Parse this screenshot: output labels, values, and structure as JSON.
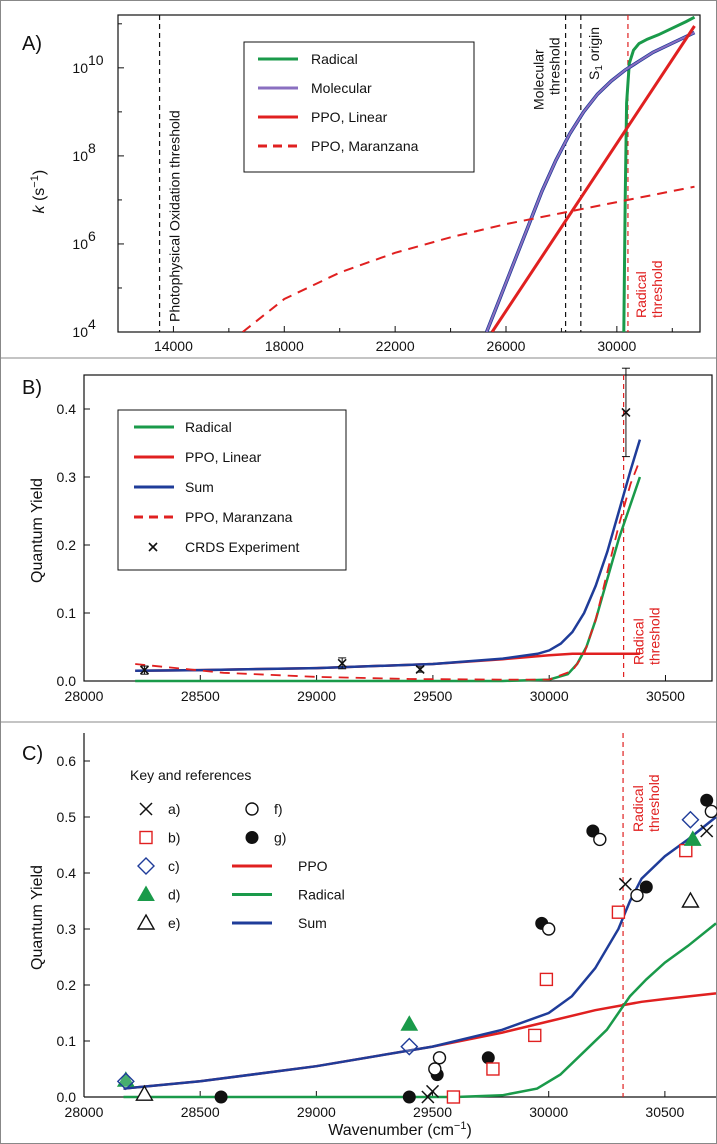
{
  "colors": {
    "radical": "#1a9a4a",
    "molecular": "#8a6fc0",
    "ppo": "#e02020",
    "sum": "#1f3c99",
    "black": "#111111",
    "red_annot": "#e02020"
  },
  "chart_data": [
    {
      "panel": "A)",
      "type": "line",
      "xlim": [
        12000,
        33000
      ],
      "ylog": true,
      "ylim_log10": [
        4,
        11.2
      ],
      "x_ticks": [
        "14000",
        "18000",
        "22000",
        "26000",
        "30000"
      ],
      "x_tick_values": [
        14000,
        18000,
        22000,
        26000,
        30000
      ],
      "y_tick_labels": [
        "10",
        "10",
        "10",
        "10"
      ],
      "y_tick_exponents": [
        "4",
        "6",
        "8",
        "10"
      ],
      "y_tick_values": [
        4,
        6,
        8,
        10
      ],
      "ylabel_main": "k",
      "ylabel_units": "(s",
      "ylabel_exp": "−1",
      "ylabel_close": ")",
      "vlines": [
        {
          "x": 13500,
          "label": "Photophysical Oxidation threshold",
          "style": "dashed",
          "color": "black"
        },
        {
          "x": 28150,
          "label_line1": "Molecular",
          "label_line2": "threshold",
          "style": "dashed",
          "color": "black"
        },
        {
          "x": 28700,
          "label_main": "S",
          "label_sub": "1",
          "label_rest": " origin",
          "style": "dashed",
          "color": "black"
        },
        {
          "x": 30400,
          "label_line1": "Radical",
          "label_line2": "threshold",
          "style": "dashed",
          "color": "red"
        }
      ],
      "legend": [
        {
          "name": "Radical",
          "style": "solid",
          "color_key": "radical"
        },
        {
          "name": "Molecular",
          "style": "solid",
          "color_key": "molecular"
        },
        {
          "name": "PPO, Linear",
          "style": "solid",
          "color_key": "ppo"
        },
        {
          "name": "PPO, Maranzana",
          "style": "dashed",
          "color_key": "ppo"
        }
      ],
      "series": [
        {
          "name": "Radical",
          "x": [
            30250,
            30300,
            30350,
            30450,
            30600,
            30800,
            31100,
            31500,
            32000,
            32500,
            32800
          ],
          "log10y": [
            4,
            7.0,
            9.2,
            10.1,
            10.4,
            10.55,
            10.65,
            10.75,
            10.9,
            11.05,
            11.15
          ]
        },
        {
          "name": "Molecular",
          "x": [
            25300,
            25800,
            26300,
            26800,
            27300,
            27800,
            28300,
            28800,
            29300,
            29800,
            30300,
            30800,
            31300,
            31800,
            32300,
            32800
          ],
          "log10y": [
            4.0,
            4.8,
            5.6,
            6.4,
            7.2,
            7.9,
            8.5,
            9.0,
            9.4,
            9.7,
            9.95,
            10.15,
            10.35,
            10.5,
            10.65,
            10.8
          ]
        },
        {
          "name": "PPO, Linear",
          "x": [
            25500,
            32800
          ],
          "log10y": [
            4.0,
            10.95
          ]
        },
        {
          "name": "PPO, Maranzana",
          "x": [
            16500,
            18000,
            20000,
            22000,
            24000,
            26000,
            28000,
            30000,
            32000,
            32800
          ],
          "log10y": [
            4.0,
            4.75,
            5.35,
            5.8,
            6.15,
            6.45,
            6.7,
            6.95,
            7.2,
            7.3
          ]
        }
      ]
    },
    {
      "panel": "B)",
      "type": "line",
      "xlim": [
        28000,
        30700
      ],
      "ylim": [
        0,
        0.45
      ],
      "x_ticks": [
        "28000",
        "28500",
        "29000",
        "29500",
        "30000",
        "30500"
      ],
      "x_tick_values": [
        28000,
        28500,
        29000,
        29500,
        30000,
        30500
      ],
      "y_ticks": [
        "0.0",
        "0.1",
        "0.2",
        "0.3",
        "0.4"
      ],
      "y_tick_values": [
        0,
        0.1,
        0.2,
        0.3,
        0.4
      ],
      "ylabel": "Quantum Yield",
      "vline": {
        "x": 30320,
        "label_line1": "Radical",
        "label_line2": "threshold"
      },
      "legend": [
        {
          "name": "Radical",
          "style": "solid",
          "color_key": "radical"
        },
        {
          "name": "PPO, Linear",
          "style": "solid",
          "color_key": "ppo"
        },
        {
          "name": "Sum",
          "style": "solid",
          "color_key": "sum"
        },
        {
          "name": "PPO, Maranzana",
          "style": "dashed",
          "color_key": "ppo"
        },
        {
          "name": "CRDS Experiment",
          "style": "x-marker",
          "color_key": "black"
        }
      ],
      "series": [
        {
          "name": "Radical",
          "x": [
            28220,
            29800,
            30000,
            30080,
            30120,
            30160,
            30200,
            30250,
            30300,
            30350,
            30390
          ],
          "y": [
            0,
            0,
            0.002,
            0.01,
            0.025,
            0.05,
            0.09,
            0.15,
            0.21,
            0.26,
            0.3
          ]
        },
        {
          "name": "PPO, Linear",
          "x": [
            28220,
            28500,
            29000,
            29500,
            29800,
            30000,
            30100,
            30200,
            30390
          ],
          "y": [
            0.015,
            0.016,
            0.019,
            0.025,
            0.032,
            0.038,
            0.04,
            0.04,
            0.04
          ]
        },
        {
          "name": "Sum",
          "x": [
            28220,
            28500,
            29000,
            29500,
            29800,
            29950,
            30000,
            30050,
            30100,
            30150,
            30200,
            30250,
            30300,
            30350,
            30390
          ],
          "y": [
            0.015,
            0.016,
            0.019,
            0.025,
            0.033,
            0.04,
            0.045,
            0.055,
            0.072,
            0.1,
            0.14,
            0.19,
            0.25,
            0.31,
            0.355
          ]
        },
        {
          "name": "PPO, Maranzana",
          "x": [
            28220,
            28600,
            29000,
            29400,
            29800,
            30000,
            30100,
            30150,
            30200,
            30250,
            30300,
            30350,
            30390
          ],
          "y": [
            0.025,
            0.012,
            0.006,
            0.003,
            0.002,
            0.002,
            0.015,
            0.04,
            0.09,
            0.16,
            0.23,
            0.29,
            0.325
          ]
        },
        {
          "name": "CRDS Experiment",
          "x": [
            28260,
            29110,
            29445,
            30330
          ],
          "y": [
            0.016,
            0.026,
            0.017,
            0.395
          ],
          "yerr": [
            0.006,
            0.008,
            0.004,
            0.065
          ]
        }
      ]
    },
    {
      "panel": "C)",
      "type": "scatter",
      "xlim": [
        28000,
        30720
      ],
      "ylim": [
        0,
        0.65
      ],
      "x_ticks": [
        "28000",
        "28500",
        "29000",
        "29500",
        "30000",
        "30500"
      ],
      "x_tick_values": [
        28000,
        28500,
        29000,
        29500,
        30000,
        30500
      ],
      "y_ticks": [
        "0.0",
        "0.1",
        "0.2",
        "0.3",
        "0.4",
        "0.5",
        "0.6"
      ],
      "y_tick_values": [
        0,
        0.1,
        0.2,
        0.3,
        0.4,
        0.5,
        0.6
      ],
      "ylabel": "Quantum Yield",
      "xlabel": "Wavenumber (cm",
      "xlabel_exp": "−1",
      "xlabel_close": ")",
      "vline": {
        "x": 30320,
        "label_line1": "Radical",
        "label_line2": "threshold"
      },
      "legend_title": "Key and references",
      "legend_markers": [
        {
          "marker": "x",
          "label": "a)"
        },
        {
          "marker": "square",
          "label": "b)"
        },
        {
          "marker": "diamond",
          "label": "c)"
        },
        {
          "marker": "filled-triangle",
          "label": "d)"
        },
        {
          "marker": "open-triangle",
          "label": "e)"
        },
        {
          "marker": "open-circle",
          "label": "f)"
        },
        {
          "marker": "filled-circle",
          "label": "g)"
        }
      ],
      "legend_lines": [
        {
          "name": "PPO",
          "color_key": "ppo"
        },
        {
          "name": "Radical",
          "color_key": "radical"
        },
        {
          "name": "Sum",
          "color_key": "sum"
        }
      ],
      "points": {
        "a": [
          [
            29480,
            0.0
          ],
          [
            29500,
            0.01
          ],
          [
            30330,
            0.38
          ],
          [
            30680,
            0.475
          ]
        ],
        "b": [
          [
            29590,
            0.0
          ],
          [
            29760,
            0.05
          ],
          [
            29940,
            0.11
          ],
          [
            29990,
            0.21
          ],
          [
            30300,
            0.33
          ],
          [
            30590,
            0.44
          ]
        ],
        "c": [
          [
            28180,
            0.028
          ],
          [
            29400,
            0.09
          ],
          [
            30610,
            0.495
          ]
        ],
        "d": [
          [
            28180,
            0.03
          ],
          [
            29400,
            0.13
          ],
          [
            30620,
            0.46
          ]
        ],
        "e": [
          [
            28260,
            0.005
          ],
          [
            30610,
            0.35
          ]
        ],
        "f": [
          [
            29510,
            0.05
          ],
          [
            29530,
            0.07
          ],
          [
            30000,
            0.3
          ],
          [
            30220,
            0.46
          ],
          [
            30380,
            0.36
          ],
          [
            30700,
            0.51
          ]
        ],
        "g": [
          [
            28590,
            0.0
          ],
          [
            29400,
            0.0
          ],
          [
            29520,
            0.04
          ],
          [
            29740,
            0.07
          ],
          [
            29970,
            0.31
          ],
          [
            30190,
            0.475
          ],
          [
            30420,
            0.375
          ],
          [
            30680,
            0.53
          ]
        ]
      },
      "series": [
        {
          "name": "PPO",
          "x": [
            28170,
            28500,
            29000,
            29500,
            29800,
            30000,
            30200,
            30400,
            30500,
            30720
          ],
          "y": [
            0.015,
            0.028,
            0.055,
            0.09,
            0.115,
            0.135,
            0.155,
            0.17,
            0.175,
            0.185
          ]
        },
        {
          "name": "Radical",
          "x": [
            28170,
            29600,
            29800,
            29950,
            30050,
            30150,
            30250,
            30300,
            30350,
            30420,
            30500,
            30600,
            30720
          ],
          "y": [
            0,
            0,
            0.003,
            0.015,
            0.04,
            0.08,
            0.12,
            0.15,
            0.18,
            0.21,
            0.24,
            0.27,
            0.31
          ]
        },
        {
          "name": "Sum",
          "x": [
            28170,
            28500,
            29000,
            29500,
            29800,
            30000,
            30100,
            30200,
            30300,
            30350,
            30400,
            30500,
            30600,
            30720
          ],
          "y": [
            0.015,
            0.028,
            0.055,
            0.09,
            0.12,
            0.15,
            0.18,
            0.23,
            0.3,
            0.35,
            0.39,
            0.43,
            0.46,
            0.5
          ]
        }
      ]
    }
  ]
}
